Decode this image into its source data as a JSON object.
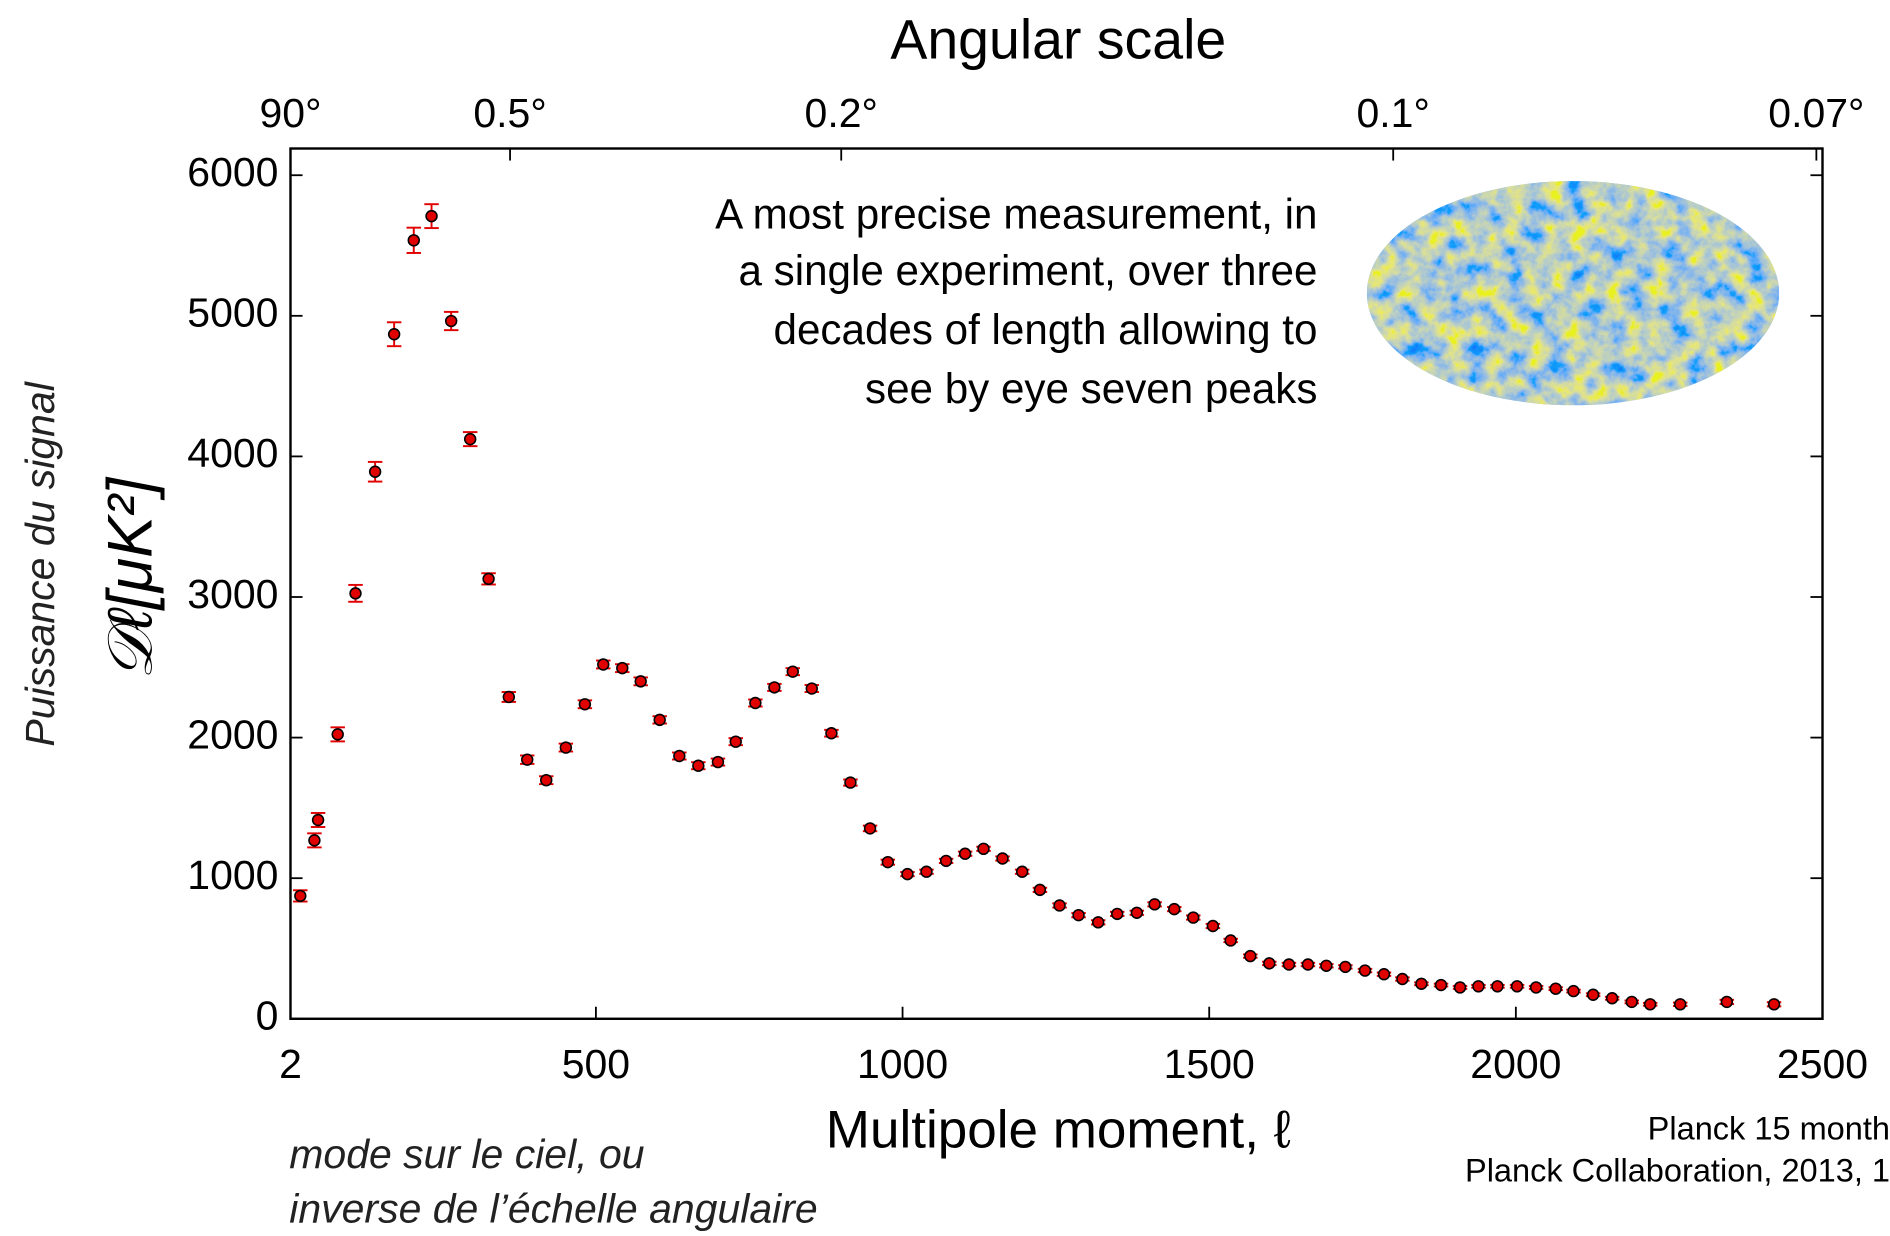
{
  "chart_data": {
    "type": "scatter",
    "title": "Angular scale",
    "x_label": "Multipole moment, ℓ",
    "y_label": "𝒟ℓ[μK²]",
    "y_note": "Puissance du signal",
    "x_note": [
      "mode sur le ciel, ou",
      "inverse de l’échelle angulaire"
    ],
    "annotation": [
      "A most precise measurement, in",
      "a single experiment, over three",
      "decades of length allowing to",
      "see by eye seven peaks"
    ],
    "credits": [
      "Planck 15 month",
      "Planck Collaboration, 2013, 1"
    ],
    "color": "#e00000",
    "error_color": "#e00000",
    "x": [
      18,
      41,
      47,
      79,
      108,
      140,
      171,
      203,
      232,
      264,
      295,
      325,
      358,
      388,
      419,
      451,
      482,
      512,
      543,
      573,
      604,
      636,
      667,
      699,
      728,
      760,
      791,
      821,
      852,
      884,
      915,
      947,
      976,
      1008,
      1039,
      1071,
      1102,
      1132,
      1163,
      1195,
      1224,
      1256,
      1287,
      1319,
      1350,
      1382,
      1411,
      1443,
      1474,
      1506,
      1535,
      1567,
      1598,
      1630,
      1661,
      1691,
      1722,
      1754,
      1785,
      1815,
      1846,
      1878,
      1909,
      1939,
      1970,
      2002,
      2033,
      2065,
      2094,
      2126,
      2157,
      2189,
      2219,
      2268,
      2344,
      2421
    ],
    "values": [
      874,
      1269,
      1414,
      2023,
      3026,
      3891,
      4869,
      5537,
      5709,
      4963,
      4123,
      3129,
      2289,
      1843,
      1697,
      1929,
      2237,
      2520,
      2494,
      2400,
      2126,
      1869,
      1800,
      1826,
      1971,
      2246,
      2357,
      2469,
      2349,
      2031,
      1680,
      1354,
      1114,
      1029,
      1046,
      1123,
      1174,
      1209,
      1140,
      1046,
      917,
      806,
      737,
      686,
      746,
      754,
      814,
      780,
      720,
      660,
      557,
      446,
      394,
      386,
      386,
      377,
      369,
      343,
      317,
      283,
      249,
      240,
      223,
      231,
      231,
      231,
      223,
      214,
      197,
      171,
      146,
      120,
      103,
      103,
      120,
      103
    ],
    "errors": [
      40,
      50,
      50,
      50,
      60,
      70,
      85,
      90,
      85,
      65,
      50,
      40,
      35,
      30,
      28,
      28,
      28,
      28,
      28,
      28,
      26,
      25,
      25,
      25,
      25,
      25,
      25,
      25,
      25,
      24,
      22,
      20,
      18,
      15,
      15,
      15,
      15,
      15,
      15,
      15,
      15,
      15,
      15,
      15,
      15,
      15,
      15,
      15,
      15,
      15,
      12,
      12,
      12,
      12,
      12,
      12,
      12,
      12,
      12,
      12,
      10,
      10,
      10,
      10,
      10,
      10,
      10,
      10,
      10,
      10,
      10,
      10,
      10,
      12,
      15,
      15
    ],
    "xlim": [
      2,
      2500
    ],
    "ylim": [
      0,
      6190
    ],
    "xticks": [
      2,
      500,
      1000,
      1500,
      2000,
      2500
    ],
    "yticks": [
      0,
      1000,
      2000,
      3000,
      4000,
      5000,
      6000
    ],
    "x2ticks": [
      {
        "value": 2,
        "label": "90°"
      },
      {
        "value": 360,
        "label": "0.5°"
      },
      {
        "value": 900,
        "label": "0.2°"
      },
      {
        "value": 1800,
        "label": "0.1°"
      },
      {
        "value": 2490,
        "label": "0.07°"
      }
    ]
  }
}
